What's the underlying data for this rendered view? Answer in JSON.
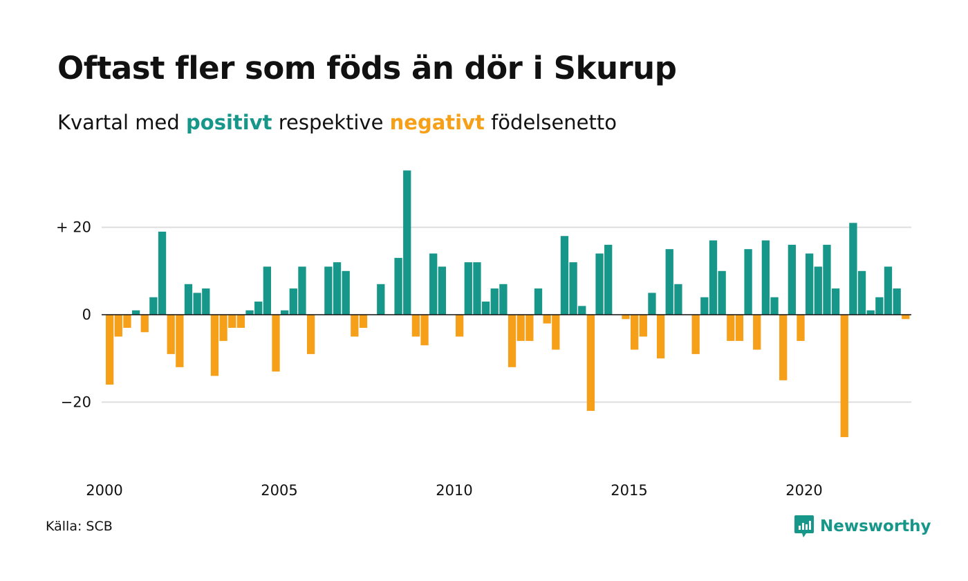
{
  "header": {
    "title": "Oftast fler som föds än dör i Skurup",
    "subtitle_prefix": "Kvartal med",
    "subtitle_positive": "positivt",
    "subtitle_middle": "respektive",
    "subtitle_negative": "negativt",
    "subtitle_suffix": "födelsenetto"
  },
  "footer": {
    "source": "Källa: SCB",
    "brand": "Newsworthy"
  },
  "colors": {
    "positive": "#17968a",
    "negative": "#f6a01a",
    "grid": "#dddddd",
    "zero_line": "#111111"
  },
  "icons": {
    "brand_logo": "newsworthy-logo-icon"
  },
  "chart_data": {
    "type": "bar",
    "x_start": "2000 Q1",
    "frequency": "quarter",
    "x_ticks": [
      "2000",
      "2005",
      "2010",
      "2015",
      "2020"
    ],
    "y_ticks": [
      {
        "value": 20,
        "label": "+ 20"
      },
      {
        "value": 0,
        "label": "0"
      },
      {
        "value": -20,
        "label": "−20"
      }
    ],
    "ylim": [
      -30,
      35
    ],
    "grid": true,
    "values": [
      -16,
      -5,
      -3,
      1,
      -4,
      4,
      19,
      -9,
      -12,
      7,
      5,
      6,
      -14,
      -6,
      -3,
      -3,
      1,
      3,
      11,
      -13,
      1,
      6,
      11,
      -9,
      0,
      11,
      12,
      10,
      -5,
      -3,
      0,
      7,
      0,
      13,
      33,
      -5,
      -7,
      14,
      11,
      0,
      -5,
      12,
      12,
      3,
      6,
      7,
      -12,
      -6,
      -6,
      6,
      -2,
      -8,
      18,
      12,
      2,
      -22,
      14,
      16,
      0,
      -1,
      -8,
      -5,
      5,
      -10,
      15,
      7,
      0,
      -9,
      4,
      17,
      10,
      -6,
      -6,
      15,
      -8,
      17,
      4,
      -15,
      16,
      -6,
      14,
      11,
      16,
      6,
      -28,
      21,
      10,
      1,
      4,
      11,
      6,
      -1
    ]
  }
}
